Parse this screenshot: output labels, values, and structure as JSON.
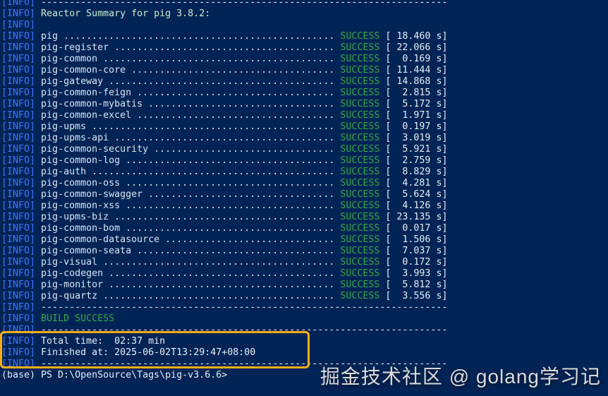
{
  "terminal": {
    "info_tag": "[INFO]",
    "separator": "------------------------------------------------------------------------",
    "reactor_summary": "Reactor Summary for pig 3.8.2:",
    "status_label": "SUCCESS",
    "time_unit": "s",
    "modules": [
      {
        "name": "pig",
        "status": "SUCCESS",
        "time": "18.460"
      },
      {
        "name": "pig-register",
        "status": "SUCCESS",
        "time": "22.066"
      },
      {
        "name": "pig-common",
        "status": "SUCCESS",
        "time": "0.169"
      },
      {
        "name": "pig-common-core",
        "status": "SUCCESS",
        "time": "11.444"
      },
      {
        "name": "pig-gateway",
        "status": "SUCCESS",
        "time": "14.868"
      },
      {
        "name": "pig-common-feign",
        "status": "SUCCESS",
        "time": "2.815"
      },
      {
        "name": "pig-common-mybatis",
        "status": "SUCCESS",
        "time": "5.172"
      },
      {
        "name": "pig-common-excel",
        "status": "SUCCESS",
        "time": "1.971"
      },
      {
        "name": "pig-upms",
        "status": "SUCCESS",
        "time": "0.197"
      },
      {
        "name": "pig-upms-api",
        "status": "SUCCESS",
        "time": "3.019"
      },
      {
        "name": "pig-common-security",
        "status": "SUCCESS",
        "time": "5.921"
      },
      {
        "name": "pig-common-log",
        "status": "SUCCESS",
        "time": "2.759"
      },
      {
        "name": "pig-auth",
        "status": "SUCCESS",
        "time": "8.829"
      },
      {
        "name": "pig-common-oss",
        "status": "SUCCESS",
        "time": "4.281"
      },
      {
        "name": "pig-common-swagger",
        "status": "SUCCESS",
        "time": "5.624"
      },
      {
        "name": "pig-common-xss",
        "status": "SUCCESS",
        "time": "4.126"
      },
      {
        "name": "pig-upms-biz",
        "status": "SUCCESS",
        "time": "23.135"
      },
      {
        "name": "pig-common-bom",
        "status": "SUCCESS",
        "time": "0.017"
      },
      {
        "name": "pig-common-datasource",
        "status": "SUCCESS",
        "time": "1.506"
      },
      {
        "name": "pig-common-seata",
        "status": "SUCCESS",
        "time": "7.037"
      },
      {
        "name": "pig-visual",
        "status": "SUCCESS",
        "time": "0.172"
      },
      {
        "name": "pig-codegen",
        "status": "SUCCESS",
        "time": "3.993"
      },
      {
        "name": "pig-monitor",
        "status": "SUCCESS",
        "time": "5.812"
      },
      {
        "name": "pig-quartz",
        "status": "SUCCESS",
        "time": "3.556"
      }
    ],
    "build_result": "BUILD SUCCESS",
    "total_time_line": "Total time:  02:37 min",
    "finished_at_line": "Finished at: 2025-06-02T13:29:47+08:00",
    "prompt": "(base) PS D:\\OpenSource\\Tags\\pig-v3.6.6>"
  },
  "watermark": "掘金技术社区 @ golang学习记",
  "colors": {
    "background": "#012456",
    "info_tag": "#3B78FF",
    "text": "#DDE5F2",
    "summary_text": "#CDEBCF",
    "success_text": "#35A845",
    "highlight_border": "#FBAD18",
    "watermark_text": "#DADADA"
  }
}
